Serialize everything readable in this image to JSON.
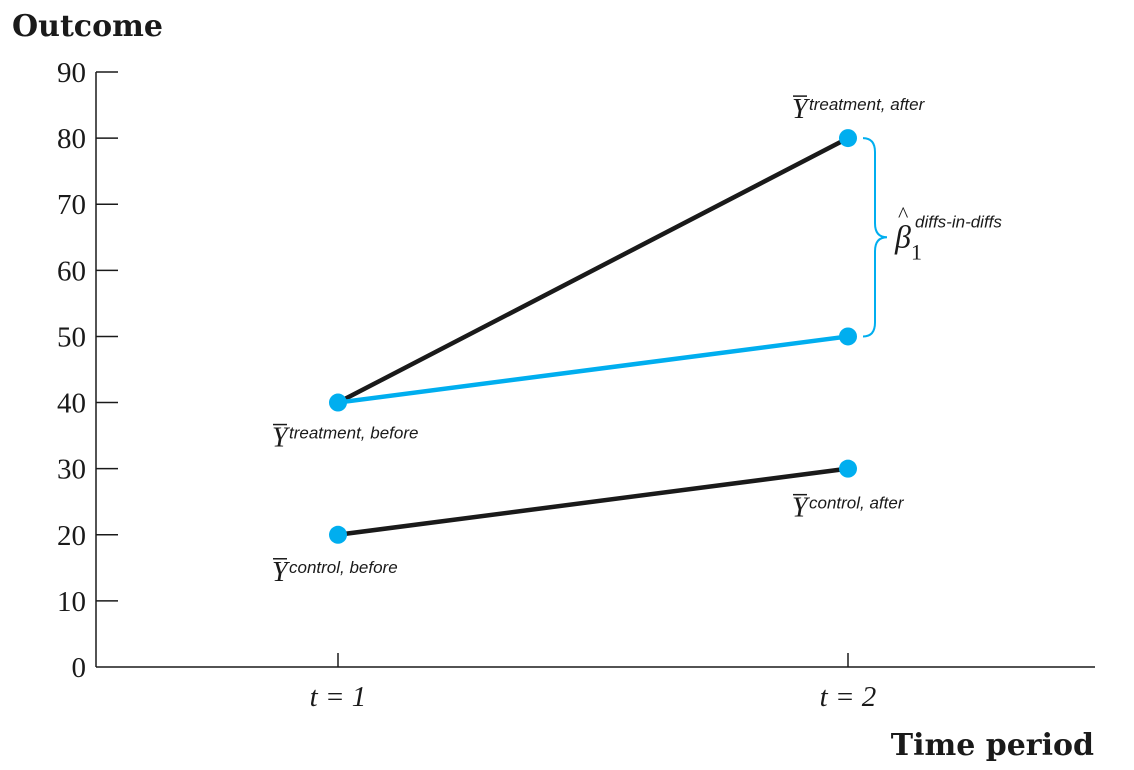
{
  "chart_data": {
    "type": "line",
    "ylabel": "Outcome",
    "xlabel": "Time period",
    "categories": [
      "t = 1",
      "t = 2"
    ],
    "ylim": [
      0,
      90
    ],
    "yticks": [
      0,
      10,
      20,
      30,
      40,
      50,
      60,
      70,
      80,
      90
    ],
    "grid": false,
    "series": [
      {
        "values": [
          40,
          80
        ],
        "color": "#1a1a1a"
      },
      {
        "values": [
          40,
          50
        ],
        "color": "#00aeef"
      },
      {
        "values": [
          20,
          30
        ],
        "color": "#1a1a1a"
      }
    ],
    "points": [
      {
        "x": 0,
        "y": 40,
        "label": {
          "main": "Y",
          "sub": "treatment, before"
        }
      },
      {
        "x": 1,
        "y": 80,
        "label": {
          "main": "Y",
          "sub": "treatment, after"
        }
      },
      {
        "x": 1,
        "y": 50
      },
      {
        "x": 0,
        "y": 20,
        "label": {
          "main": "Y",
          "sub": "control, before"
        }
      },
      {
        "x": 1,
        "y": 30,
        "label": {
          "main": "Y",
          "sub": "control, after"
        }
      }
    ],
    "brace": {
      "x": 1,
      "from": 50,
      "to": 80,
      "label": {
        "main": "β",
        "hat": "^",
        "sub": "1",
        "sup": "diffs-in-diffs"
      }
    },
    "colors": {
      "accent": "#00aeef",
      "ink": "#1a1a1a"
    }
  }
}
